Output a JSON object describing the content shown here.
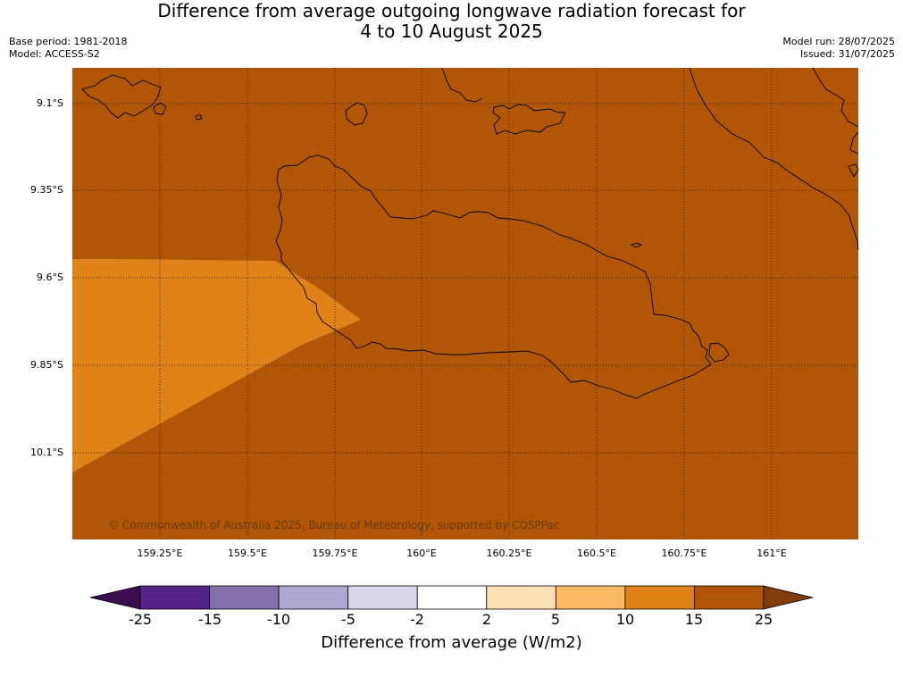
{
  "header": {
    "title_line1": "Difference from average outgoing longwave radiation forecast for",
    "title_line2": "4 to 10 August 2025",
    "base_period": "Base period: 1981-2018",
    "model": "Model: ACCESS-S2",
    "model_run": "Model run: 28/07/2025",
    "issued": "Issued: 31/07/2025"
  },
  "map": {
    "background_color": "#b05606",
    "anomaly_patch_color": "#e08218",
    "latitudes": [
      "9.1°S",
      "9.35°S",
      "9.6°S",
      "9.85°S",
      "10.1°S"
    ],
    "longitudes": [
      "159.25°E",
      "159.5°E",
      "159.75°E",
      "160°E",
      "160.25°E",
      "160.5°E",
      "160.75°E",
      "161°E"
    ],
    "copyright": "© Commonwealth of Australia 2025, Bureau of Meteorology, supported by COSPPac"
  },
  "colorbar": {
    "title": "Difference from average (W/m2)",
    "ticks": [
      "-25",
      "-15",
      "-10",
      "-5",
      "-2",
      "2",
      "5",
      "10",
      "15",
      "25"
    ],
    "colors": [
      "#3a0e4c",
      "#552288",
      "#8271ad",
      "#afa7d1",
      "#d8d8ea",
      "#ffffff",
      "#fee0b6",
      "#fdb863",
      "#e08218",
      "#b05606",
      "#7f3b08"
    ]
  }
}
